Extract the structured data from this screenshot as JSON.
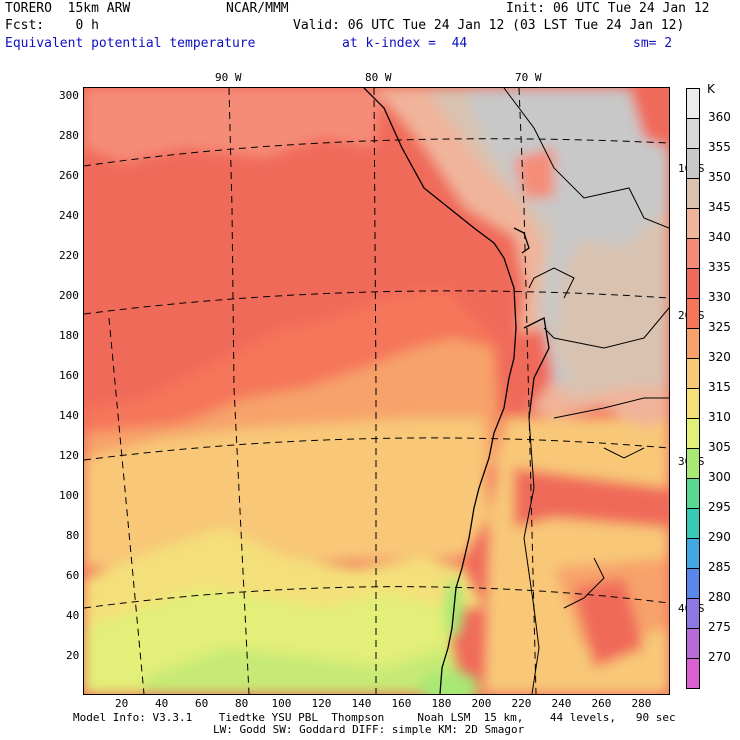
{
  "header": {
    "model": "TORERO  15km ARW",
    "center": "NCAR/MMM",
    "init": "Init: 06 UTC Tue 24 Jan 12",
    "fcst": "Fcst:    0 h",
    "valid": "Valid: 06 UTC Tue 24 Jan 12 (03 LST Tue 24 Jan 12)",
    "field": "Equivalent potential temperature",
    "level": "at k-index =  44",
    "smooth": "sm= 2"
  },
  "map": {
    "lon_labels": [
      "90 W",
      "80 W",
      "70 W"
    ],
    "lat_labels": [
      "10 S",
      "20 S",
      "30 S",
      "40 S"
    ],
    "x_ticks": [
      "20",
      "40",
      "60",
      "80",
      "100",
      "120",
      "140",
      "160",
      "180",
      "200",
      "220",
      "240",
      "260",
      "280"
    ],
    "y_ticks": [
      "20",
      "40",
      "60",
      "80",
      "100",
      "120",
      "140",
      "160",
      "180",
      "200",
      "220",
      "240",
      "260",
      "280",
      "300"
    ]
  },
  "colorbar": {
    "unit": "K",
    "levels": [
      {
        "label": "360",
        "color": "#ececec"
      },
      {
        "label": "355",
        "color": "#d7d7d7"
      },
      {
        "label": "350",
        "color": "#c8c8c8"
      },
      {
        "label": "345",
        "color": "#d9c2b0"
      },
      {
        "label": "340",
        "color": "#f0b49a"
      },
      {
        "label": "335",
        "color": "#f58c78"
      },
      {
        "label": "330",
        "color": "#f06a5a"
      },
      {
        "label": "325",
        "color": "#f5765a"
      },
      {
        "label": "320",
        "color": "#f7a26a"
      },
      {
        "label": "315",
        "color": "#f8c878"
      },
      {
        "label": "310",
        "color": "#f4e07a"
      },
      {
        "label": "305",
        "color": "#e2ef78"
      },
      {
        "label": "300",
        "color": "#a8e874"
      },
      {
        "label": "295",
        "color": "#58d890"
      },
      {
        "label": "290",
        "color": "#38cbb4"
      },
      {
        "label": "285",
        "color": "#44a8e0"
      },
      {
        "label": "280",
        "color": "#5a88e8"
      },
      {
        "label": "275",
        "color": "#8c78e0"
      },
      {
        "label": "270",
        "color": "#b86ad8"
      },
      {
        "label": "",
        "color": "#d860d0"
      }
    ]
  },
  "footer": {
    "line1": "Model Info: V3.3.1    Tiedtke YSU PBL  Thompson     Noah LSM  15 km,    44 levels,   90 sec",
    "line2": "LW: Godd SW: Goddard DIFF: simple KM: 2D Smagor"
  }
}
